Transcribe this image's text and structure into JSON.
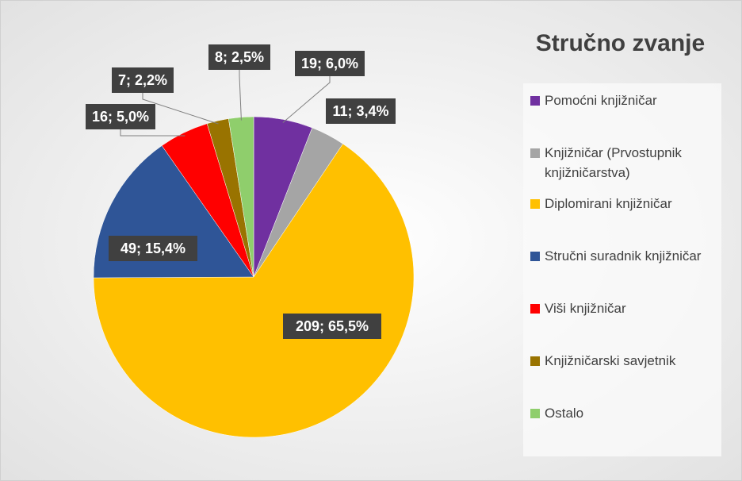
{
  "chart_data": {
    "type": "pie",
    "title": "Stručno zvanje",
    "categories": [
      "Pomoćni knjižničar",
      "Knjižničar (Prvostupnik knjižničarstva)",
      "Diplomirani knjižničar",
      "Stručni suradnik knjižničar",
      "Viši knjižničar",
      "Knjižničarski savjetnik",
      "Ostalo"
    ],
    "values": [
      19,
      11,
      209,
      49,
      16,
      7,
      8
    ],
    "value_labels": [
      "19; 6,0%",
      "11; 3,4%",
      "209; 65,5%",
      "49; 15,4%",
      "16; 5,0%",
      "7; 2,2%",
      "8; 2,5%"
    ],
    "colors": [
      "#7030a0",
      "#a5a5a5",
      "#ffc000",
      "#2f5597",
      "#ff0000",
      "#997300",
      "#8fce6c"
    ],
    "legend": "right"
  }
}
